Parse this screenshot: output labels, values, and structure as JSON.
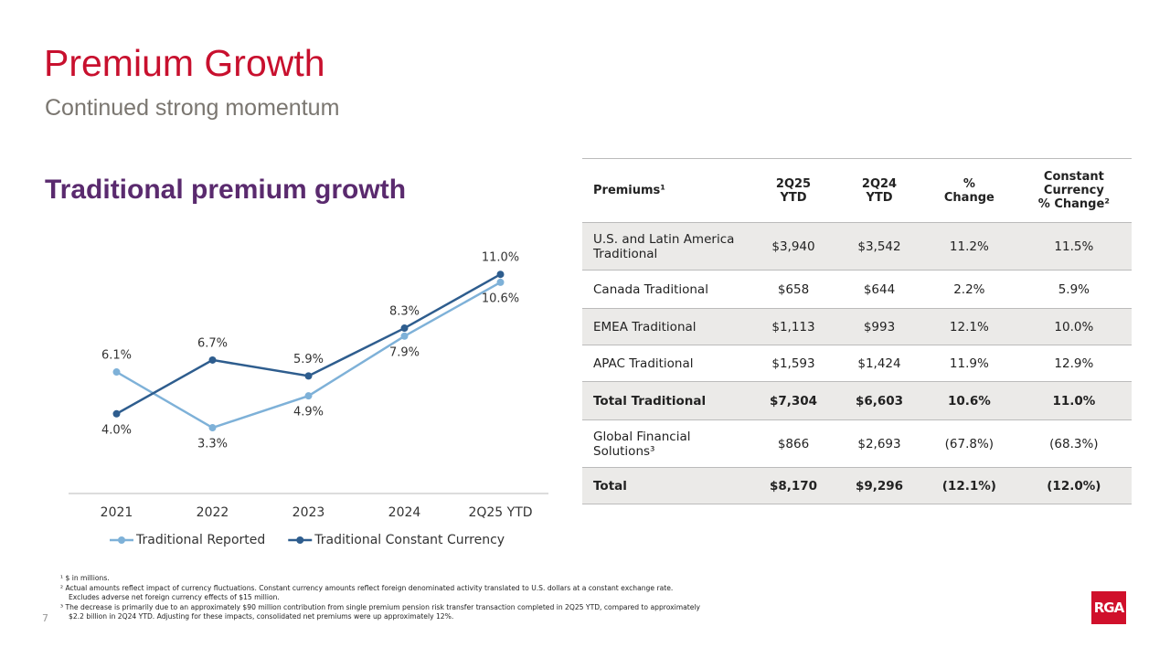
{
  "header": {
    "title": "Premium Growth",
    "subtitle": "Continued strong momentum"
  },
  "section_title": "Traditional premium growth",
  "chart_data": {
    "type": "line",
    "categories": [
      "2021",
      "2022",
      "2023",
      "2024",
      "2Q25 YTD"
    ],
    "series": [
      {
        "name": "Traditional Reported",
        "color": "#7eb1d8",
        "values": [
          6.1,
          3.3,
          4.9,
          7.9,
          10.6
        ],
        "value_labels": [
          "6.1%",
          "3.3%",
          "4.9%",
          "7.9%",
          "10.6%"
        ]
      },
      {
        "name": "Traditional Constant Currency",
        "color": "#2e5d8e",
        "values": [
          4.0,
          6.7,
          5.9,
          8.3,
          11.0
        ],
        "value_labels": [
          "4.0%",
          "6.7%",
          "5.9%",
          "8.3%",
          "11.0%"
        ]
      }
    ],
    "legend": "bottom"
  },
  "table": {
    "header": [
      [
        "Premiums¹"
      ],
      [
        "2Q25",
        "YTD"
      ],
      [
        "2Q24",
        "YTD"
      ],
      [
        "%",
        "Change"
      ],
      [
        "Constant",
        "Currency",
        "% Change²"
      ]
    ],
    "rows": [
      [
        "U.S. and Latin America Traditional",
        "$3,940",
        "$3,542",
        "11.2%",
        "11.5%"
      ],
      [
        "Canada Traditional",
        "$658",
        "$644",
        "2.2%",
        "5.9%"
      ],
      [
        "EMEA Traditional",
        "$1,113",
        "$993",
        "12.1%",
        "10.0%"
      ],
      [
        "APAC Traditional",
        "$1,593",
        "$1,424",
        "11.9%",
        "12.9%"
      ],
      [
        "Total Traditional",
        "$7,304",
        "$6,603",
        "10.6%",
        "11.0%"
      ],
      [
        "Global Financial Solutions³",
        "$866",
        "$2,693",
        "(67.8%)",
        "(68.3%)"
      ],
      [
        "Total",
        "$8,170",
        "$9,296",
        "(12.1%)",
        "(12.0%)"
      ]
    ],
    "bold_rows": [
      4,
      6
    ]
  },
  "footnotes": [
    "¹ $ in millions.",
    "² Actual amounts reflect impact of currency fluctuations. Constant currency amounts reflect foreign denominated activity translated to U.S. dollars at a constant exchange rate.",
    "Excludes adverse net foreign currency effects of $15 million.",
    "³ The decrease is primarily due to an approximately $90 million contribution from single premium pension risk transfer transaction completed in 2Q25 YTD, compared to approximately",
    "$2.2 billion in 2Q24 YTD. Adjusting for these impacts, consolidated net premiums were up approximately 12%."
  ],
  "page_number": "7",
  "logo": "RGA"
}
